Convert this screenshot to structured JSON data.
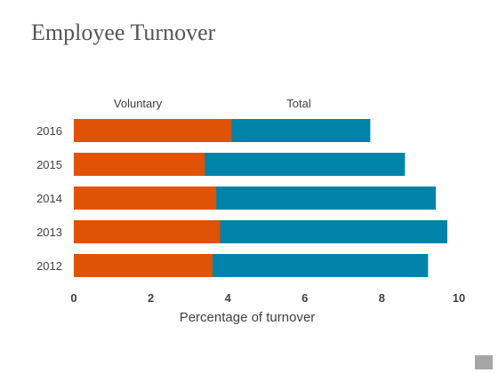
{
  "slide": {
    "title": "Employee Turnover"
  },
  "colors": {
    "voluntary": "#e05206",
    "total": "#0083a9",
    "text": "#404040",
    "corner": "#a6a6a6"
  },
  "chart_data": {
    "type": "bar",
    "orientation": "horizontal",
    "stacked": "overlay",
    "title": "",
    "xlabel": "Percentage of  turnover",
    "ylabel": "",
    "xlim": [
      0,
      10
    ],
    "xticks": [
      0,
      2,
      4,
      6,
      8,
      10
    ],
    "grid": false,
    "legend_position": "top",
    "categories": [
      "2016",
      "2015",
      "2014",
      "2013",
      "2012"
    ],
    "series": [
      {
        "name": "Voluntary",
        "values": [
          4.1,
          3.4,
          3.7,
          3.8,
          3.6
        ]
      },
      {
        "name": "Total",
        "values": [
          7.7,
          8.6,
          9.4,
          9.7,
          9.2
        ]
      }
    ]
  }
}
